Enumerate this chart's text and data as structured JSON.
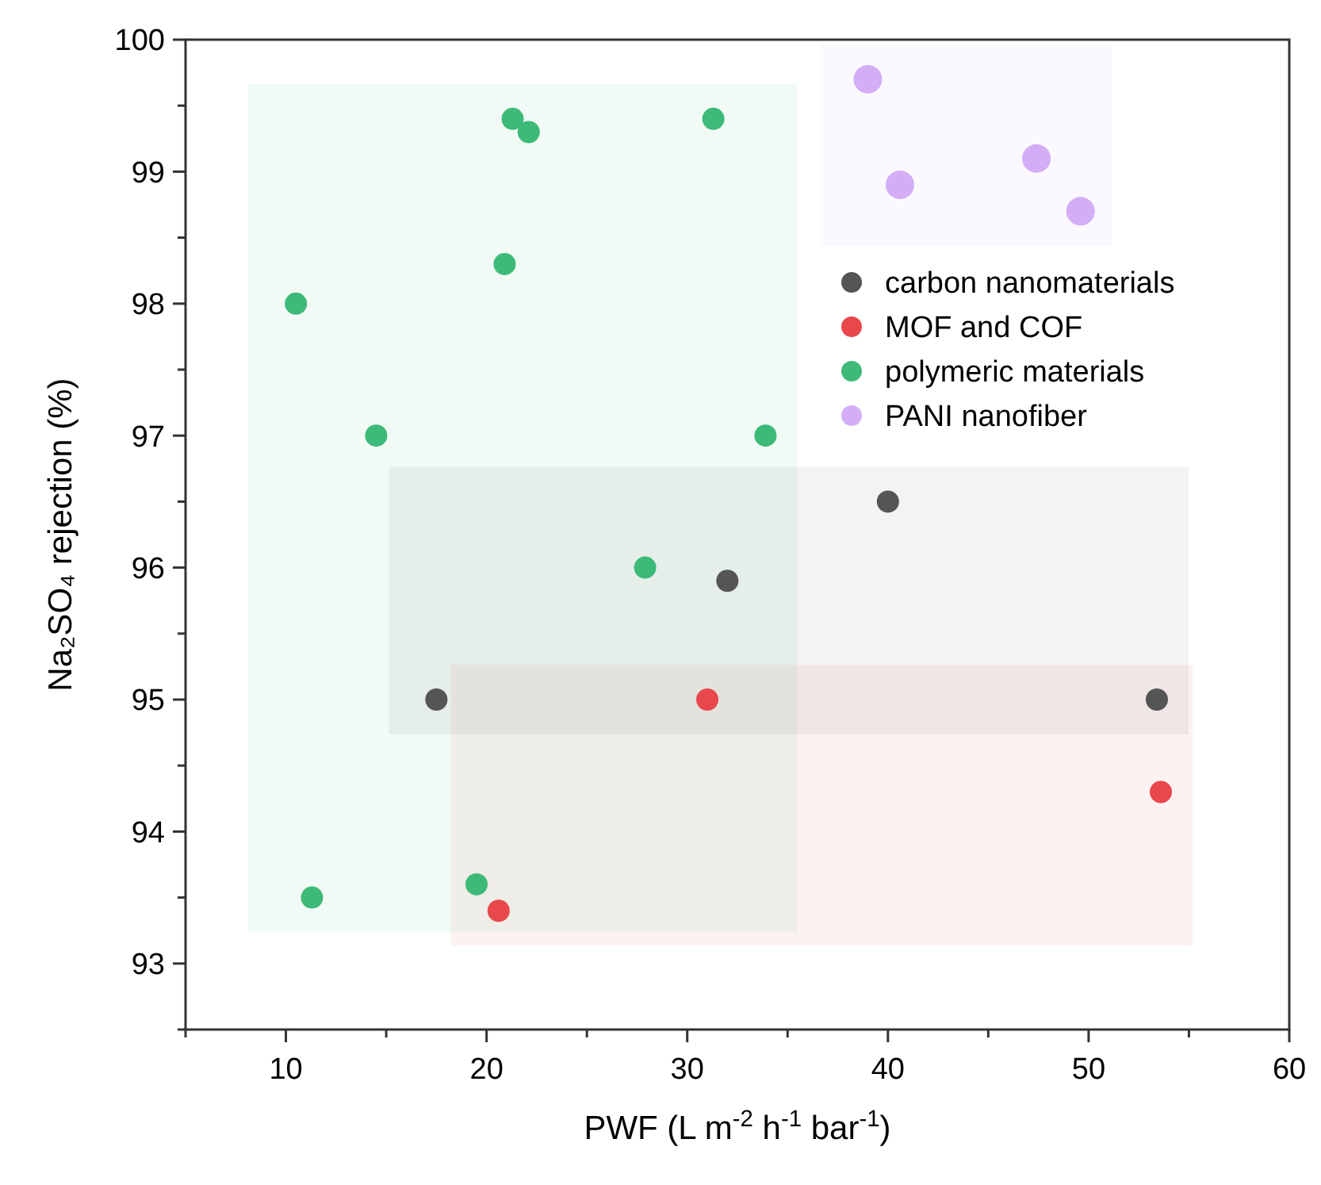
{
  "chart_data": {
    "type": "scatter",
    "xlabel": "PWF (L m$^{-2}$ h$^{-1}$ bar$^{-1}$)",
    "ylabel": "Na₂SO₄ rejection (%)",
    "xlim": [
      5,
      60
    ],
    "ylim": [
      92.5,
      100
    ],
    "xticks": [
      {
        "value": 5,
        "label": null
      },
      10,
      {
        "value": 15,
        "label": null
      },
      20,
      {
        "value": 25,
        "label": null
      },
      30,
      {
        "value": 35,
        "label": null
      },
      40,
      {
        "value": 45,
        "label": null
      },
      50,
      {
        "value": 55,
        "label": null
      },
      60
    ],
    "yticks": [
      {
        "value": 92.5,
        "label": null
      },
      93,
      {
        "value": 93.5,
        "label": null
      },
      94,
      {
        "value": 94.5,
        "label": null
      },
      95,
      {
        "value": 95.5,
        "label": null
      },
      96,
      {
        "value": 96.5,
        "label": null
      },
      97,
      {
        "value": 97.5,
        "label": null
      },
      98,
      {
        "value": 98.5,
        "label": null
      },
      99,
      {
        "value": 99.5,
        "label": null
      },
      100
    ],
    "grid": false,
    "legend": "right",
    "marker": "circle",
    "series": [
      {
        "name": "carbon nanomaterials",
        "color": "#555555",
        "x": [
          17.5,
          32.0,
          40.0,
          53.4
        ],
        "values": [
          95.0,
          95.9,
          96.5,
          95.0
        ]
      },
      {
        "name": "MOF and COF",
        "color": "#e8474c",
        "x": [
          31.0,
          20.6,
          53.6
        ],
        "values": [
          95.0,
          93.4,
          94.3
        ]
      },
      {
        "name": "polymeric materials",
        "color": "#3dba78",
        "x": [
          10.5,
          14.5,
          21.3,
          22.1,
          20.9,
          31.3,
          33.9,
          27.9,
          11.3,
          19.5
        ],
        "values": [
          98.0,
          97.0,
          99.4,
          99.3,
          98.3,
          99.4,
          97.0,
          96.0,
          93.5,
          93.6
        ]
      },
      {
        "name": "PANI nanofiber",
        "color": "#d3aef7",
        "x": [
          39.0,
          40.6,
          47.4,
          49.6
        ],
        "values": [
          99.7,
          98.9,
          99.1,
          98.7
        ]
      }
    ]
  }
}
